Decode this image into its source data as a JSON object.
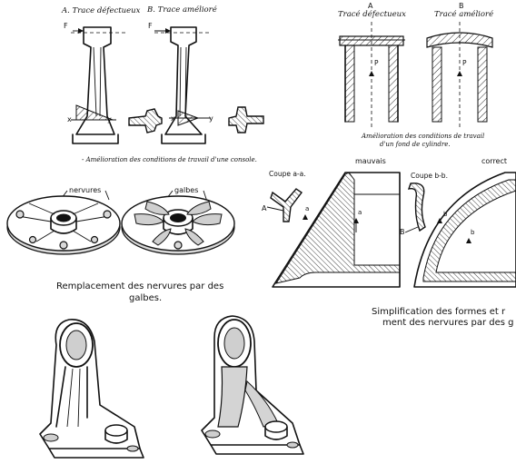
{
  "fig_console": {
    "label_a": "A. Trace défectueux",
    "label_b": "B. Trace amélioré",
    "force": "F",
    "axis_x": "x",
    "axis_y": "y",
    "caption": "- Amélioration des conditions de travail d'une console."
  },
  "fig_cylinder": {
    "label_a_letter": "A",
    "label_a_text": "Tracé défectueux",
    "label_b_letter": "B",
    "label_b_text": "Tracé amélioré",
    "p_letter": "P",
    "caption_line1": "Amélioration des conditions de travail",
    "caption_line2": "d'un fond de cylindre."
  },
  "fig_disc": {
    "callout_left": "nervures",
    "callout_right": "galbes",
    "caption_line1": "Remplacement des nervures par des",
    "caption_line2": "galbes."
  },
  "fig_section": {
    "mauvais": "mauvais",
    "correct": "correct",
    "coupe_aa": "Coupe a-a.",
    "coupe_bb": "Coupe b-b.",
    "letter_a": "A",
    "letter_b": "B",
    "small_a": "a",
    "small_b": "b",
    "caption_line1": "Simplification des formes et r",
    "caption_line2": "ment des nervures par des g"
  }
}
